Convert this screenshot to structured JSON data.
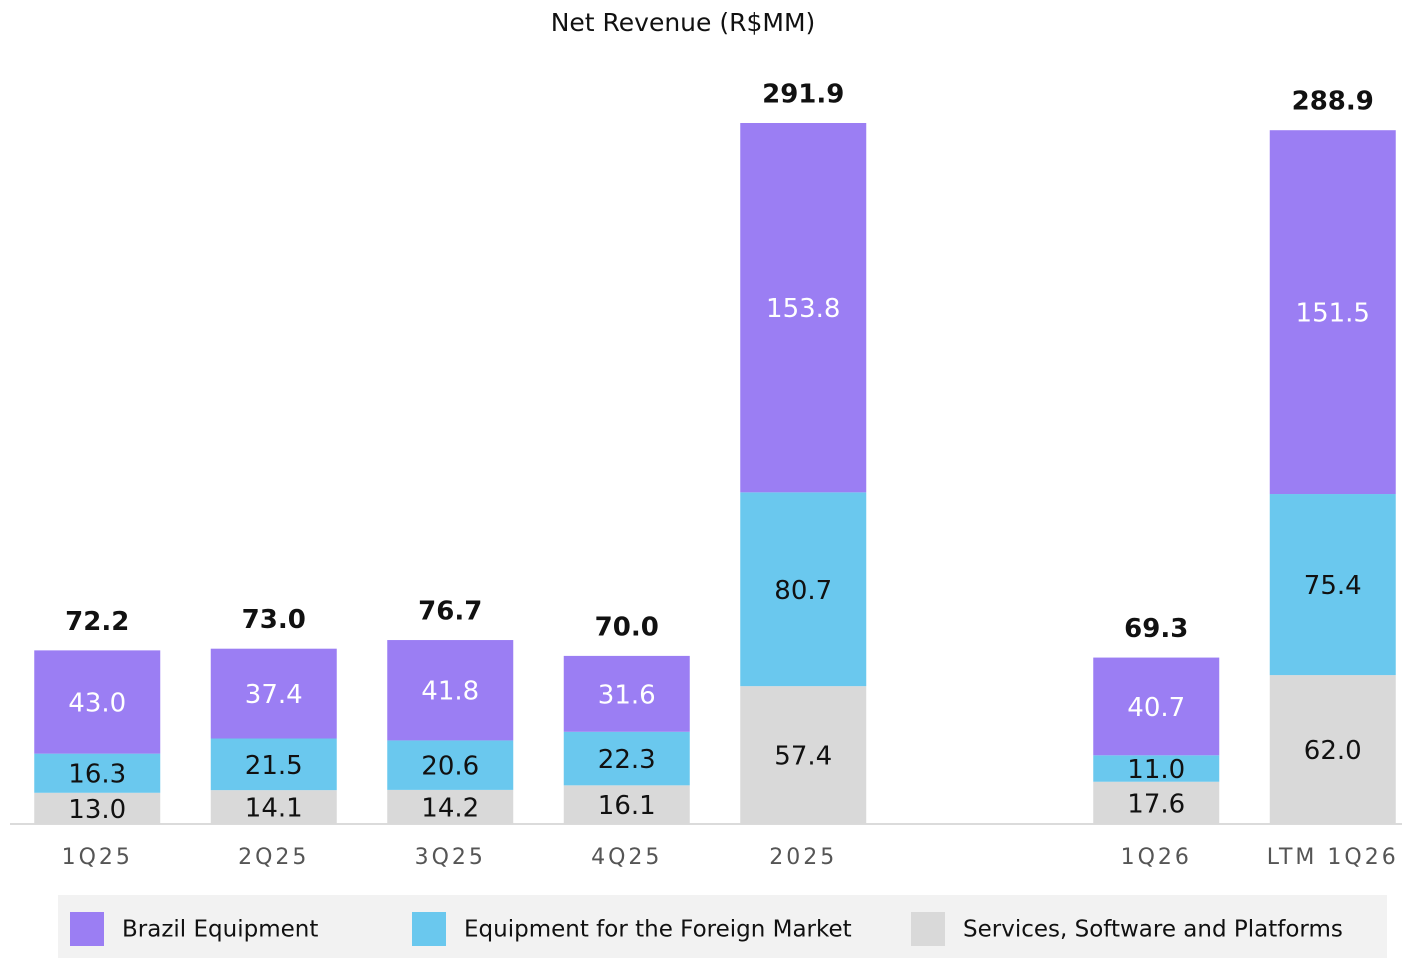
{
  "chart_data": {
    "type": "stacked-bar",
    "title": "Net Revenue (R$MM)",
    "categories": [
      "1Q25",
      "2Q25",
      "3Q25",
      "4Q25",
      "2025",
      null,
      "1Q26",
      "LTM 1Q26"
    ],
    "series": [
      {
        "name": "Brazil Equipment",
        "color": "#9b7ef3",
        "label_color": "#ffffff",
        "values": [
          43.0,
          37.4,
          41.8,
          31.6,
          153.8,
          null,
          40.7,
          151.5
        ],
        "value_labels": [
          "43.0",
          "37.4",
          "41.8",
          "31.6",
          "153.8",
          null,
          "40.7",
          "151.5"
        ]
      },
      {
        "name": "Equipment for the Foreign Market",
        "color": "#6ac8ee",
        "label_color": "#111111",
        "values": [
          16.3,
          21.5,
          20.6,
          22.3,
          80.7,
          null,
          11.0,
          75.4
        ],
        "value_labels": [
          "16.3",
          "21.5",
          "20.6",
          "22.3",
          "80.7",
          null,
          "11.0",
          "75.4"
        ]
      },
      {
        "name": "Services, Software and Platforms",
        "color": "#d9d9d9",
        "label_color": "#111111",
        "values": [
          13.0,
          14.1,
          14.2,
          16.1,
          57.4,
          null,
          17.6,
          62.0
        ],
        "value_labels": [
          "13.0",
          "14.1",
          "14.2",
          "16.1",
          "57.4",
          null,
          "17.6",
          "62.0"
        ]
      }
    ],
    "totals": {
      "values": [
        72.2,
        73.0,
        76.7,
        70.0,
        291.9,
        null,
        69.3,
        288.9
      ],
      "value_labels": [
        "72.2",
        "73.0",
        "76.7",
        "70.0",
        "291.9",
        null,
        "69.3",
        "288.9"
      ]
    },
    "legend": "bottom"
  }
}
